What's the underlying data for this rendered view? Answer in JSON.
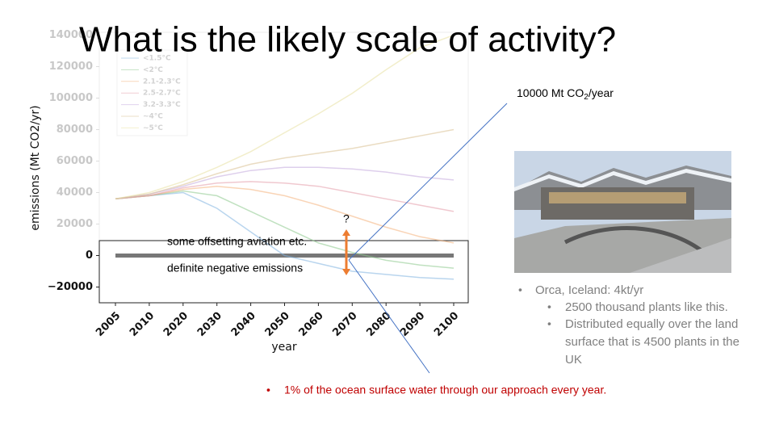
{
  "slide": {
    "title": "What is the likely scale of activity?",
    "co2_label": {
      "before": "10000 Mt CO",
      "sub": "2",
      "after": "/year"
    },
    "bullets": {
      "main": "Orca, Iceland: 4kt/yr",
      "sub": [
        "2500 thousand plants like this.",
        "Distributed equally over the land",
        "surface that is 4500 plants in the",
        "UK"
      ]
    },
    "ocean_bullet": "1% of the ocean surface water through our approach every year."
  },
  "chart_data": {
    "type": "line",
    "x_label": "year",
    "y_label": "emissions (Mt CO2/yr)",
    "categories": [
      "2005",
      "2010",
      "2020",
      "2030",
      "2040",
      "2050",
      "2060",
      "2070",
      "2080",
      "2090",
      "2100"
    ],
    "ylim": [
      -30000,
      140000
    ],
    "yticks": [
      140000,
      120000,
      100000,
      80000,
      60000,
      40000,
      20000,
      0,
      {
        "value": -20000,
        "label": "−20000"
      }
    ],
    "annotations": {
      "question": "?",
      "offsetting": "some offsetting aviation etc.",
      "negative": "definite negative emissions"
    },
    "series": [
      {
        "name": "<1.5°C",
        "color": "#7fb3e0",
        "values": [
          36000,
          38000,
          40000,
          30000,
          15000,
          0,
          -5000,
          -10000,
          -12000,
          -14000,
          -15000
        ]
      },
      {
        "name": "<2°C",
        "color": "#8cc98c",
        "values": [
          36000,
          38000,
          41000,
          38000,
          28000,
          18000,
          8000,
          2000,
          -3000,
          -6000,
          -8000
        ]
      },
      {
        "name": "2.1-2.3°C",
        "color": "#f4b07a",
        "values": [
          36000,
          38000,
          42000,
          44000,
          42000,
          38000,
          32000,
          25000,
          18000,
          12000,
          8000
        ]
      },
      {
        "name": "2.5-2.7°C",
        "color": "#e39aa8",
        "values": [
          36000,
          38000,
          43000,
          46000,
          47000,
          46000,
          44000,
          40000,
          36000,
          32000,
          28000
        ]
      },
      {
        "name": "3.2-3.3°C",
        "color": "#c3a8dc",
        "values": [
          36000,
          39000,
          44000,
          50000,
          54000,
          56000,
          56000,
          55000,
          53000,
          50000,
          48000
        ]
      },
      {
        "name": "~4°C",
        "color": "#d8c090",
        "values": [
          36000,
          39000,
          45000,
          52000,
          58000,
          62000,
          65000,
          68000,
          72000,
          76000,
          80000
        ]
      },
      {
        "name": "~5°C",
        "color": "#e8e0a0",
        "values": [
          36000,
          40000,
          47000,
          56000,
          66000,
          78000,
          90000,
          103000,
          118000,
          132000,
          140000
        ]
      }
    ]
  }
}
